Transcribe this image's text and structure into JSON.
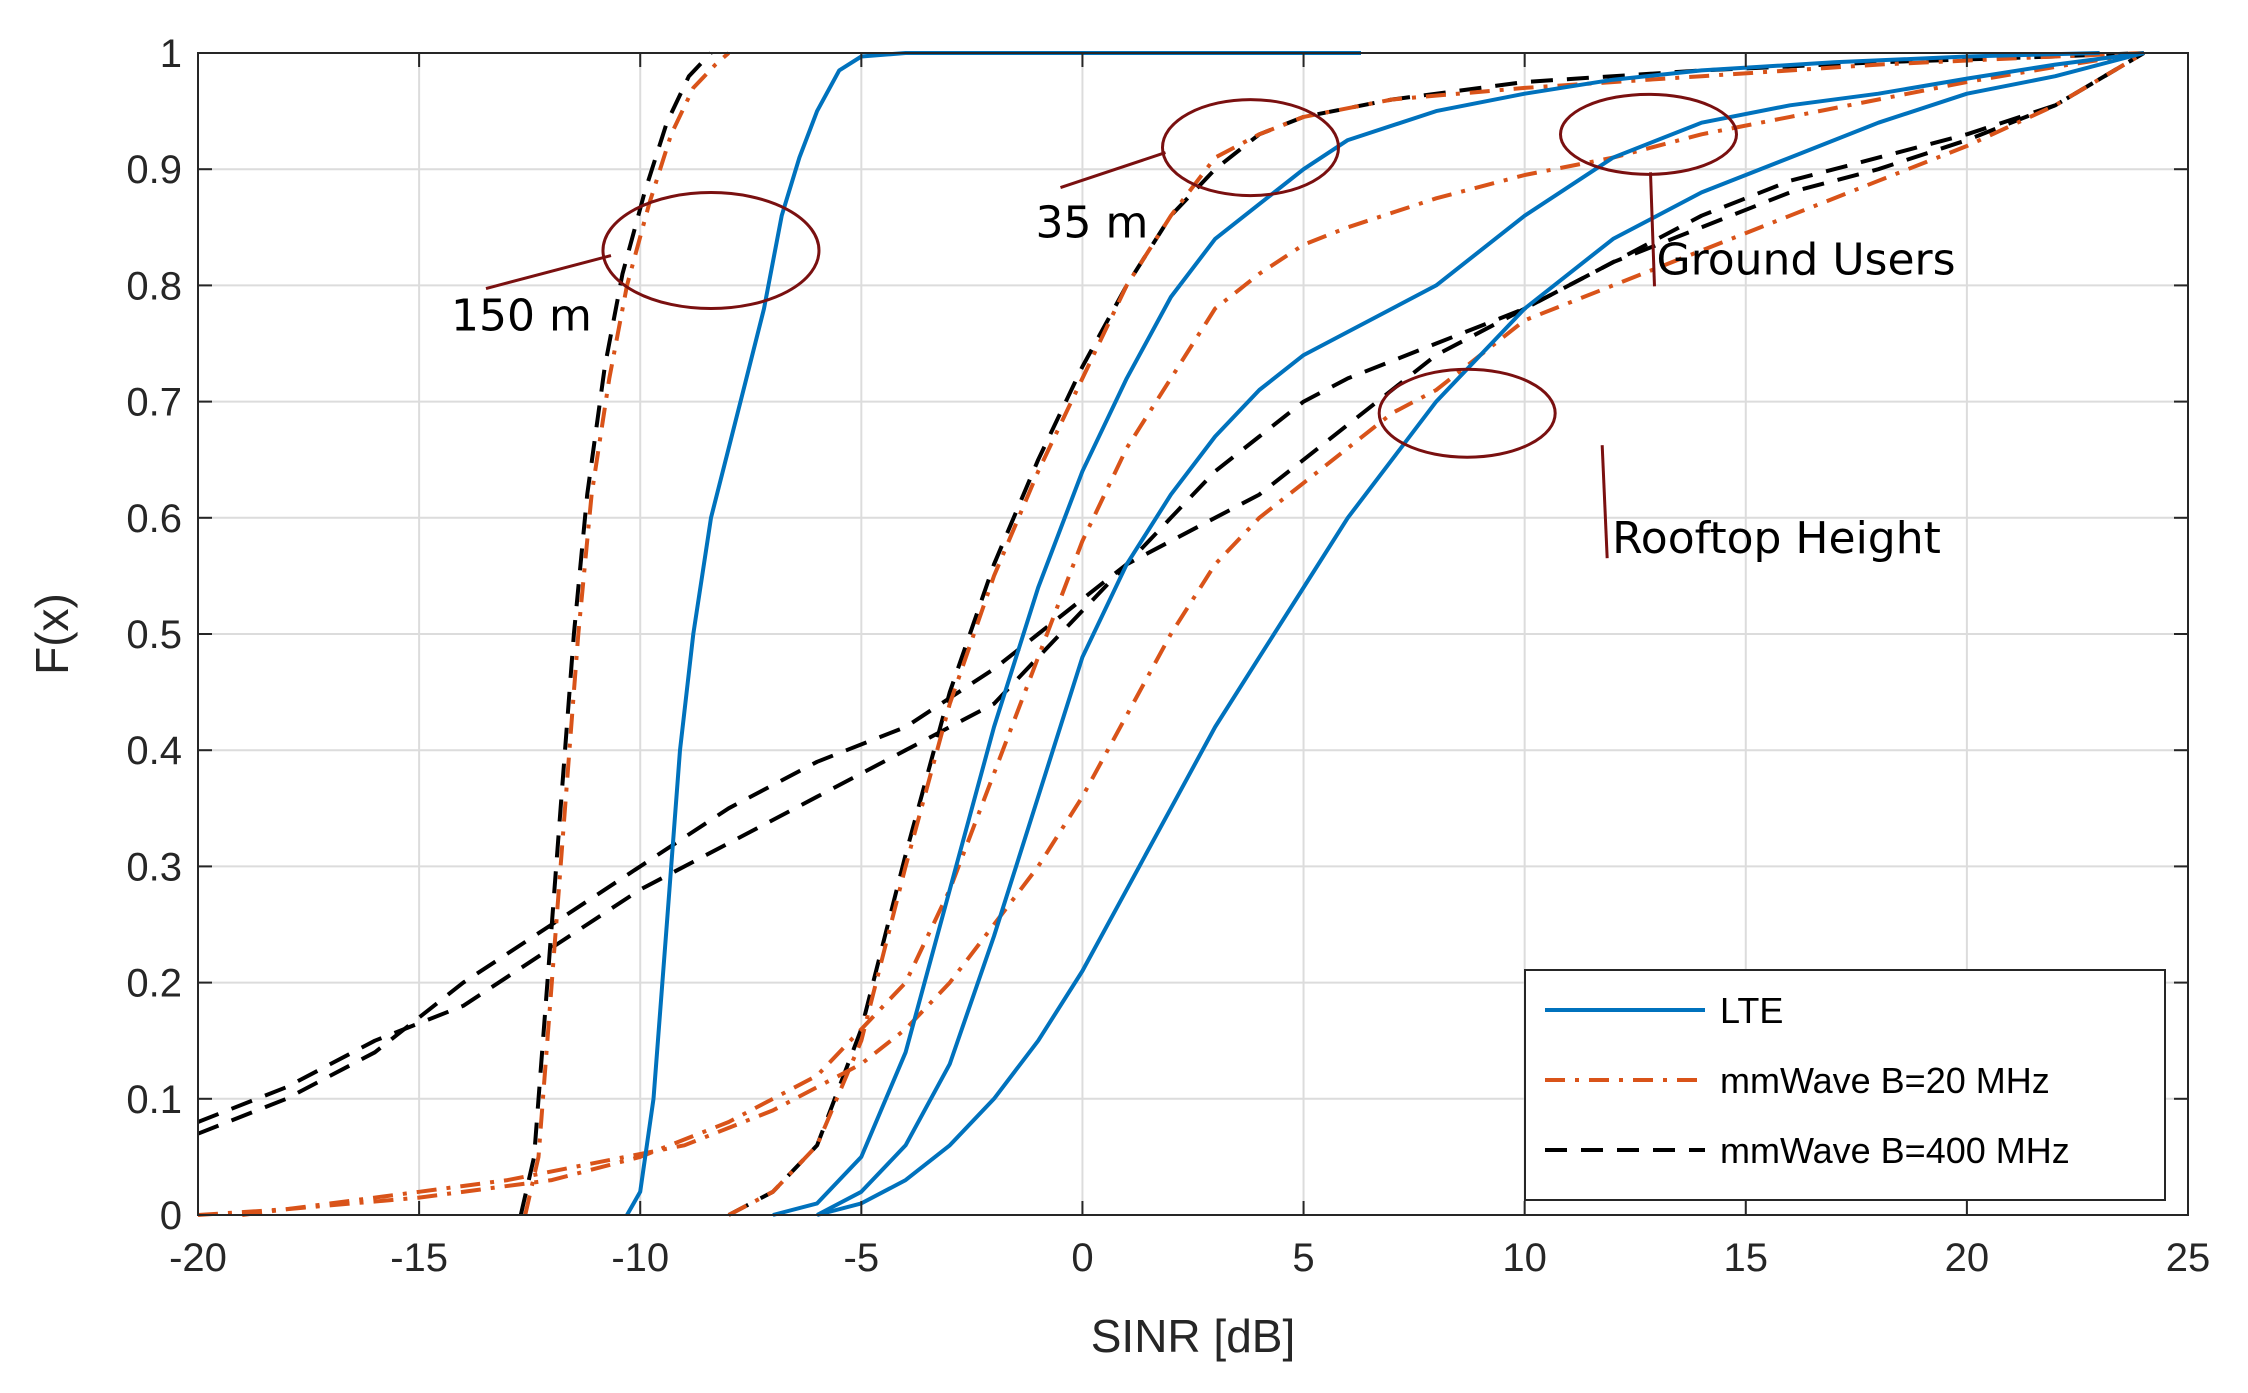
{
  "chart_data": {
    "type": "line",
    "title": "",
    "xlabel": "SINR [dB]",
    "ylabel": "F(x)",
    "xlim": [
      -20,
      25
    ],
    "ylim": [
      0,
      1
    ],
    "xticks": [
      -20,
      -15,
      -10,
      -5,
      0,
      5,
      10,
      15,
      20,
      25
    ],
    "yticks": [
      0,
      0.1,
      0.2,
      0.3,
      0.4,
      0.5,
      0.6,
      0.7,
      0.8,
      0.9,
      1
    ],
    "xtick_labels": [
      "-20",
      "-15",
      "-10",
      "-5",
      "0",
      "5",
      "10",
      "15",
      "20",
      "25"
    ],
    "ytick_labels": [
      "0",
      "0.1",
      "0.2",
      "0.3",
      "0.4",
      "0.5",
      "0.6",
      "0.7",
      "0.8",
      "0.9",
      "1"
    ],
    "grid": true,
    "legend_position": "bottom-right",
    "legend": [
      {
        "label": "LTE",
        "color": "#0072BD",
        "dash": "solid"
      },
      {
        "label": "mmWave B=20 MHz",
        "color": "#D95319",
        "dash": "dashdot"
      },
      {
        "label": "mmWave B=400 MHz",
        "color": "#000000",
        "dash": "dashed"
      }
    ],
    "series": [
      {
        "name": "LTE 150 m",
        "group": "LTE",
        "points": [
          [
            -10.3,
            0
          ],
          [
            -10,
            0.02
          ],
          [
            -9.7,
            0.1
          ],
          [
            -9.4,
            0.25
          ],
          [
            -9.1,
            0.4
          ],
          [
            -8.8,
            0.5
          ],
          [
            -8.4,
            0.6
          ],
          [
            -8.0,
            0.66
          ],
          [
            -7.6,
            0.72
          ],
          [
            -7.2,
            0.78
          ],
          [
            -6.8,
            0.86
          ],
          [
            -6.4,
            0.91
          ],
          [
            -6,
            0.95
          ],
          [
            -5.5,
            0.985
          ],
          [
            -5,
            0.997
          ],
          [
            -4,
            1
          ],
          [
            6.3,
            1
          ]
        ]
      },
      {
        "name": "mmWave B=20 MHz 150 m",
        "group": "mmWave B=20 MHz",
        "points": [
          [
            -12.6,
            0
          ],
          [
            -12.3,
            0.05
          ],
          [
            -12,
            0.2
          ],
          [
            -11.7,
            0.35
          ],
          [
            -11.4,
            0.5
          ],
          [
            -11.1,
            0.62
          ],
          [
            -10.7,
            0.72
          ],
          [
            -10.3,
            0.8
          ],
          [
            -9.8,
            0.87
          ],
          [
            -9.3,
            0.93
          ],
          [
            -8.8,
            0.97
          ],
          [
            -8.3,
            0.99
          ],
          [
            -8,
            1
          ]
        ]
      },
      {
        "name": "mmWave B=400 MHz 150 m",
        "group": "mmWave B=400 MHz",
        "points": [
          [
            -12.7,
            0
          ],
          [
            -12.4,
            0.05
          ],
          [
            -12.1,
            0.2
          ],
          [
            -11.8,
            0.35
          ],
          [
            -11.5,
            0.5
          ],
          [
            -11.2,
            0.62
          ],
          [
            -10.8,
            0.73
          ],
          [
            -10.4,
            0.81
          ],
          [
            -9.9,
            0.88
          ],
          [
            -9.4,
            0.94
          ],
          [
            -8.9,
            0.98
          ],
          [
            -8.4,
            1
          ]
        ]
      },
      {
        "name": "LTE 35 m",
        "group": "LTE",
        "points": [
          [
            -7,
            0
          ],
          [
            -6,
            0.01
          ],
          [
            -5,
            0.05
          ],
          [
            -4,
            0.14
          ],
          [
            -3,
            0.28
          ],
          [
            -2,
            0.42
          ],
          [
            -1,
            0.54
          ],
          [
            0,
            0.64
          ],
          [
            1,
            0.72
          ],
          [
            2,
            0.79
          ],
          [
            3,
            0.84
          ],
          [
            4,
            0.87
          ],
          [
            5,
            0.9
          ],
          [
            6,
            0.925
          ],
          [
            8,
            0.95
          ],
          [
            10,
            0.965
          ],
          [
            12,
            0.977
          ],
          [
            14,
            0.985
          ],
          [
            17,
            0.992
          ],
          [
            20,
            0.997
          ],
          [
            23,
            1
          ]
        ]
      },
      {
        "name": "mmWave B=20 MHz 35 m",
        "group": "mmWave B=20 MHz",
        "points": [
          [
            -8,
            0
          ],
          [
            -7,
            0.02
          ],
          [
            -6,
            0.06
          ],
          [
            -5,
            0.15
          ],
          [
            -4,
            0.3
          ],
          [
            -3,
            0.44
          ],
          [
            -2,
            0.55
          ],
          [
            -1,
            0.64
          ],
          [
            0,
            0.72
          ],
          [
            1,
            0.8
          ],
          [
            2,
            0.86
          ],
          [
            3,
            0.91
          ],
          [
            4,
            0.93
          ],
          [
            5,
            0.945
          ],
          [
            7,
            0.96
          ],
          [
            10,
            0.97
          ],
          [
            14,
            0.98
          ],
          [
            18,
            0.99
          ],
          [
            22,
            0.997
          ],
          [
            24,
            1
          ]
        ]
      },
      {
        "name": "mmWave B=400 MHz 35 m",
        "group": "mmWave B=400 MHz",
        "points": [
          [
            -8,
            0
          ],
          [
            -7,
            0.02
          ],
          [
            -6,
            0.06
          ],
          [
            -5,
            0.16
          ],
          [
            -4,
            0.31
          ],
          [
            -3,
            0.45
          ],
          [
            -2,
            0.56
          ],
          [
            -1,
            0.65
          ],
          [
            0,
            0.73
          ],
          [
            1,
            0.8
          ],
          [
            2,
            0.86
          ],
          [
            3,
            0.9
          ],
          [
            4,
            0.93
          ],
          [
            5,
            0.945
          ],
          [
            7,
            0.96
          ],
          [
            10,
            0.975
          ],
          [
            14,
            0.985
          ],
          [
            18,
            0.992
          ],
          [
            22,
            0.997
          ],
          [
            24,
            1
          ]
        ]
      },
      {
        "name": "LTE Ground Users",
        "group": "LTE",
        "points": [
          [
            -6,
            0
          ],
          [
            -5,
            0.02
          ],
          [
            -4,
            0.06
          ],
          [
            -3,
            0.13
          ],
          [
            -2,
            0.24
          ],
          [
            -1,
            0.36
          ],
          [
            0,
            0.48
          ],
          [
            1,
            0.56
          ],
          [
            2,
            0.62
          ],
          [
            3,
            0.67
          ],
          [
            4,
            0.71
          ],
          [
            5,
            0.74
          ],
          [
            6,
            0.76
          ],
          [
            8,
            0.8
          ],
          [
            10,
            0.86
          ],
          [
            12,
            0.91
          ],
          [
            14,
            0.94
          ],
          [
            16,
            0.955
          ],
          [
            18,
            0.965
          ],
          [
            20,
            0.978
          ],
          [
            22,
            0.99
          ],
          [
            24,
            1
          ]
        ]
      },
      {
        "name": "mmWave B=20 MHz Ground Users",
        "group": "mmWave B=20 MHz",
        "points": [
          [
            -20,
            0
          ],
          [
            -18,
            0.005
          ],
          [
            -15,
            0.015
          ],
          [
            -12,
            0.03
          ],
          [
            -10,
            0.05
          ],
          [
            -8,
            0.08
          ],
          [
            -6,
            0.12
          ],
          [
            -4,
            0.2
          ],
          [
            -3,
            0.28
          ],
          [
            -2,
            0.38
          ],
          [
            -1,
            0.48
          ],
          [
            0,
            0.58
          ],
          [
            1,
            0.66
          ],
          [
            2,
            0.72
          ],
          [
            3,
            0.78
          ],
          [
            4,
            0.81
          ],
          [
            5,
            0.835
          ],
          [
            6,
            0.85
          ],
          [
            8,
            0.875
          ],
          [
            10,
            0.895
          ],
          [
            12,
            0.91
          ],
          [
            14,
            0.93
          ],
          [
            16,
            0.945
          ],
          [
            18,
            0.96
          ],
          [
            20,
            0.975
          ],
          [
            22,
            0.988
          ],
          [
            24,
            1
          ]
        ]
      },
      {
        "name": "mmWave B=400 MHz Ground Users",
        "group": "mmWave B=400 MHz",
        "points": [
          [
            -20,
            0.07
          ],
          [
            -18,
            0.1
          ],
          [
            -16,
            0.14
          ],
          [
            -14,
            0.2
          ],
          [
            -12,
            0.25
          ],
          [
            -10,
            0.3
          ],
          [
            -8,
            0.35
          ],
          [
            -6,
            0.39
          ],
          [
            -4,
            0.42
          ],
          [
            -2,
            0.47
          ],
          [
            -1,
            0.5
          ],
          [
            0,
            0.53
          ],
          [
            1,
            0.56
          ],
          [
            2,
            0.6
          ],
          [
            3,
            0.64
          ],
          [
            4,
            0.67
          ],
          [
            5,
            0.7
          ],
          [
            6,
            0.72
          ],
          [
            8,
            0.75
          ],
          [
            10,
            0.78
          ],
          [
            12,
            0.82
          ],
          [
            14,
            0.86
          ],
          [
            16,
            0.89
          ],
          [
            18,
            0.91
          ],
          [
            20,
            0.93
          ],
          [
            22,
            0.955
          ],
          [
            24,
            1
          ]
        ]
      },
      {
        "name": "LTE Rooftop Height",
        "group": "LTE",
        "points": [
          [
            -6,
            0
          ],
          [
            -5,
            0.01
          ],
          [
            -4,
            0.03
          ],
          [
            -3,
            0.06
          ],
          [
            -2,
            0.1
          ],
          [
            -1,
            0.15
          ],
          [
            0,
            0.21
          ],
          [
            1,
            0.28
          ],
          [
            2,
            0.35
          ],
          [
            3,
            0.42
          ],
          [
            4,
            0.48
          ],
          [
            5,
            0.54
          ],
          [
            6,
            0.6
          ],
          [
            7,
            0.65
          ],
          [
            8,
            0.7
          ],
          [
            9,
            0.74
          ],
          [
            10,
            0.78
          ],
          [
            12,
            0.84
          ],
          [
            14,
            0.88
          ],
          [
            16,
            0.91
          ],
          [
            18,
            0.94
          ],
          [
            20,
            0.965
          ],
          [
            22,
            0.98
          ],
          [
            24,
            1
          ]
        ]
      },
      {
        "name": "mmWave B=20 MHz Rooftop Height",
        "group": "mmWave B=20 MHz",
        "points": [
          [
            -19,
            0
          ],
          [
            -17,
            0.01
          ],
          [
            -15,
            0.02
          ],
          [
            -13,
            0.03
          ],
          [
            -11,
            0.045
          ],
          [
            -9,
            0.06
          ],
          [
            -7,
            0.09
          ],
          [
            -5,
            0.13
          ],
          [
            -4,
            0.16
          ],
          [
            -3,
            0.2
          ],
          [
            -2,
            0.25
          ],
          [
            -1,
            0.3
          ],
          [
            0,
            0.36
          ],
          [
            1,
            0.43
          ],
          [
            2,
            0.5
          ],
          [
            3,
            0.56
          ],
          [
            4,
            0.6
          ],
          [
            5,
            0.63
          ],
          [
            6,
            0.66
          ],
          [
            7,
            0.69
          ],
          [
            8,
            0.71
          ],
          [
            9,
            0.74
          ],
          [
            10,
            0.77
          ],
          [
            12,
            0.8
          ],
          [
            14,
            0.83
          ],
          [
            16,
            0.86
          ],
          [
            18,
            0.89
          ],
          [
            20,
            0.92
          ],
          [
            22,
            0.955
          ],
          [
            24,
            1
          ]
        ]
      },
      {
        "name": "mmWave B=400 MHz Rooftop Height",
        "group": "mmWave B=400 MHz",
        "points": [
          [
            -20,
            0.08
          ],
          [
            -18,
            0.11
          ],
          [
            -16,
            0.15
          ],
          [
            -14,
            0.18
          ],
          [
            -12,
            0.23
          ],
          [
            -10,
            0.28
          ],
          [
            -8,
            0.32
          ],
          [
            -6,
            0.36
          ],
          [
            -4,
            0.4
          ],
          [
            -2,
            0.44
          ],
          [
            -1,
            0.48
          ],
          [
            0,
            0.52
          ],
          [
            1,
            0.56
          ],
          [
            2,
            0.58
          ],
          [
            3,
            0.6
          ],
          [
            4,
            0.62
          ],
          [
            5,
            0.65
          ],
          [
            6,
            0.68
          ],
          [
            8,
            0.74
          ],
          [
            10,
            0.78
          ],
          [
            12,
            0.82
          ],
          [
            14,
            0.85
          ],
          [
            16,
            0.88
          ],
          [
            18,
            0.9
          ],
          [
            20,
            0.925
          ],
          [
            22,
            0.955
          ],
          [
            24,
            1
          ]
        ]
      }
    ],
    "annotations": [
      {
        "text": "150 m",
        "at": [
          -8.4,
          0.83
        ]
      },
      {
        "text": "35 m",
        "at": [
          3.8,
          0.91
        ]
      },
      {
        "text": "Ground Users",
        "at": [
          12.8,
          0.93
        ]
      },
      {
        "text": "Rooftop Height",
        "at": [
          8.7,
          0.69
        ]
      }
    ]
  }
}
